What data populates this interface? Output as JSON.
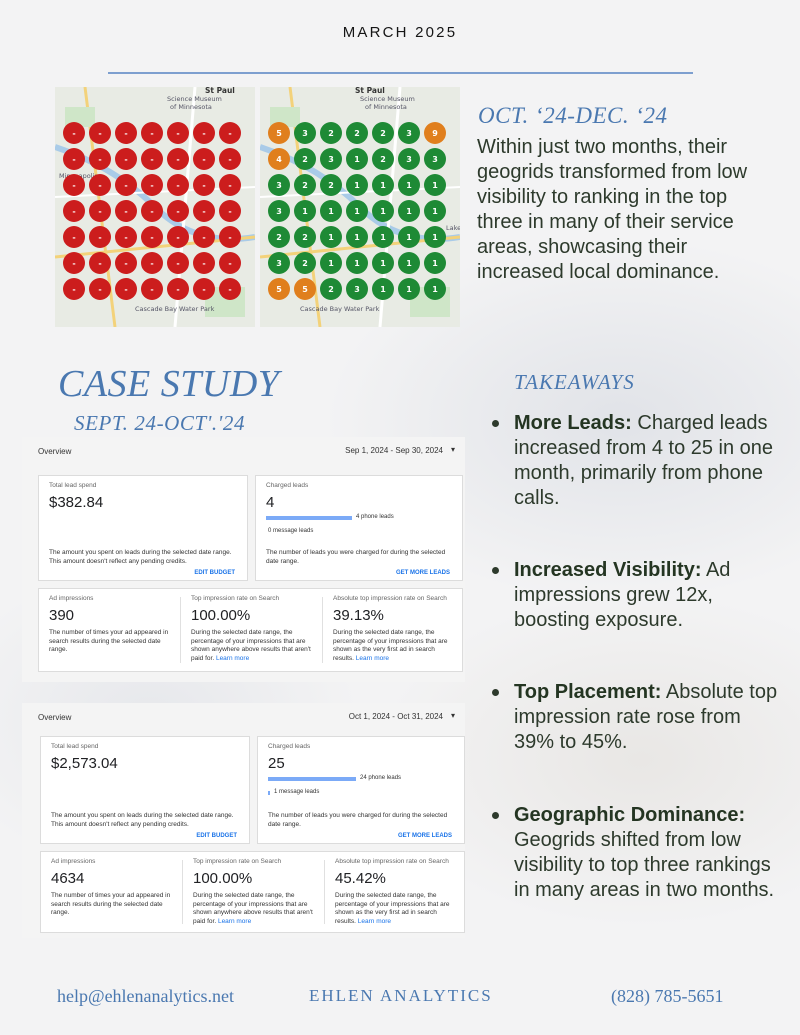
{
  "header": {
    "month": "MARCH 2025"
  },
  "maps": {
    "before": {
      "labels": [
        "St Paul",
        "Science Museum",
        "of Minnesota",
        "Cascade Bay Water Park",
        "Minneapolis"
      ]
    },
    "after": {
      "labels": [
        "St Paul",
        "Science Museum",
        "of Minnesota",
        "Cascade Bay Water Park",
        "Lake"
      ]
    },
    "before_grid": [
      [
        "-",
        "-",
        "-",
        "-",
        "-",
        "-",
        "-"
      ],
      [
        "-",
        "-",
        "-",
        "-",
        "-",
        "-",
        "-"
      ],
      [
        "-",
        "-",
        "-",
        "-",
        "-",
        "-",
        "-"
      ],
      [
        "-",
        "-",
        "-",
        "-",
        "-",
        "-",
        "-"
      ],
      [
        "-",
        "-",
        "-",
        "-",
        "-",
        "-",
        "-"
      ],
      [
        "-",
        "-",
        "-",
        "-",
        "-",
        "-",
        "-"
      ],
      [
        "-",
        "-",
        "-",
        "-",
        "-",
        "-",
        "-"
      ]
    ],
    "after_grid": [
      [
        "5",
        "3",
        "2",
        "2",
        "2",
        "3",
        "9"
      ],
      [
        "4",
        "2",
        "3",
        "1",
        "2",
        "3",
        "3"
      ],
      [
        "3",
        "2",
        "2",
        "1",
        "1",
        "1",
        "1"
      ],
      [
        "3",
        "1",
        "1",
        "1",
        "1",
        "1",
        "1"
      ],
      [
        "2",
        "2",
        "1",
        "1",
        "1",
        "1",
        "1"
      ],
      [
        "3",
        "2",
        "1",
        "1",
        "1",
        "1",
        "1"
      ],
      [
        "5",
        "5",
        "2",
        "3",
        "1",
        "1",
        "1"
      ]
    ],
    "after_colors": [
      [
        "o",
        "g",
        "g",
        "g",
        "g",
        "g",
        "o"
      ],
      [
        "o",
        "g",
        "g",
        "g",
        "g",
        "g",
        "g"
      ],
      [
        "g",
        "g",
        "g",
        "g",
        "g",
        "g",
        "g"
      ],
      [
        "g",
        "g",
        "g",
        "g",
        "g",
        "g",
        "g"
      ],
      [
        "g",
        "g",
        "g",
        "g",
        "g",
        "g",
        "g"
      ],
      [
        "g",
        "g",
        "g",
        "g",
        "g",
        "g",
        "g"
      ],
      [
        "o",
        "o",
        "g",
        "g",
        "g",
        "g",
        "g"
      ]
    ],
    "colors": {
      "red": "#cc1d1d",
      "green": "#1e8a35",
      "orange": "#e07f1d"
    }
  },
  "oct": {
    "heading": "OCT. ‘24-DEC. ‘24",
    "body": "Within just two months, their geogrids transformed from low visibility to ranking in the top three in many of their service areas, showcasing their increased local dominance."
  },
  "case_study": {
    "title": "CASE STUDY",
    "subtitle": "SEPT. 24-OCT'.'24"
  },
  "panel1": {
    "overview": "Overview",
    "date_range": "Sep 1, 2024 - Sep 30, 2024",
    "spend_label": "Total lead spend",
    "spend_value": "$382.84",
    "spend_desc": "The amount you spent on leads during the selected date range. This amount doesn't reflect any pending credits.",
    "spend_action": "EDIT BUDGET",
    "leads_label": "Charged leads",
    "leads_value": "4",
    "phone_leads": "4 phone leads",
    "message_leads": "0 message leads",
    "leads_desc": "The number of leads you were charged for during the selected date range.",
    "leads_action": "GET MORE LEADS",
    "impr_label": "Ad impressions",
    "impr_value": "390",
    "impr_desc": "The number of times your ad appeared in search results during the selected date range.",
    "top_label": "Top impression rate on Search",
    "top_value": "100.00%",
    "top_desc": "During the selected date range, the percentage of your impressions that are shown anywhere above results that aren't paid for.",
    "top_link": "Learn more",
    "abs_label": "Absolute top impression rate on Search",
    "abs_value": "39.13%",
    "abs_desc": "During the selected date range, the percentage of your impressions that are shown as the very first ad in search results.",
    "abs_link": "Learn more"
  },
  "panel2": {
    "overview": "Overview",
    "date_range": "Oct 1, 2024 - Oct 31, 2024",
    "spend_label": "Total lead spend",
    "spend_value": "$2,573.04",
    "spend_desc": "The amount you spent on leads during the selected date range. This amount doesn't reflect any pending credits.",
    "spend_action": "EDIT BUDGET",
    "leads_label": "Charged leads",
    "leads_value": "25",
    "phone_leads": "24 phone leads",
    "message_leads": "1 message leads",
    "leads_desc": "The number of leads you were charged for during the selected date range.",
    "leads_action": "GET MORE LEADS",
    "impr_label": "Ad impressions",
    "impr_value": "4634",
    "impr_desc": "The number of times your ad appeared in search results during the selected date range.",
    "top_label": "Top impression rate on Search",
    "top_value": "100.00%",
    "top_desc": "During the selected date range, the percentage of your impressions that are shown anywhere above results that aren't paid for.",
    "top_link": "Learn more",
    "abs_label": "Absolute top impression rate on Search",
    "abs_value": "45.42%",
    "abs_desc": "During the selected date range, the percentage of your impressions that are shown as the very first ad in search results.",
    "abs_link": "Learn more"
  },
  "takeaways": {
    "heading": "TAKEAWAYS",
    "items": [
      {
        "title": "More Leads:",
        "text": "Charged leads increased from 4 to 25 in one month, primarily from phone calls."
      },
      {
        "title": "Increased Visibility:",
        "text": "Ad impressions grew 12x, boosting exposure."
      },
      {
        "title": "Top Placement:",
        "text": "Absolute top impression rate rose from 39% to 45%."
      },
      {
        "title": "Geographic Dominance:",
        "text": "Geogrids shifted from low visibility to top three rankings in many areas in two months."
      }
    ]
  },
  "footer": {
    "email": "help@ehlenanalytics.net",
    "brand": "EHLEN ANALYTICS",
    "phone": "(828) 785-5651"
  }
}
